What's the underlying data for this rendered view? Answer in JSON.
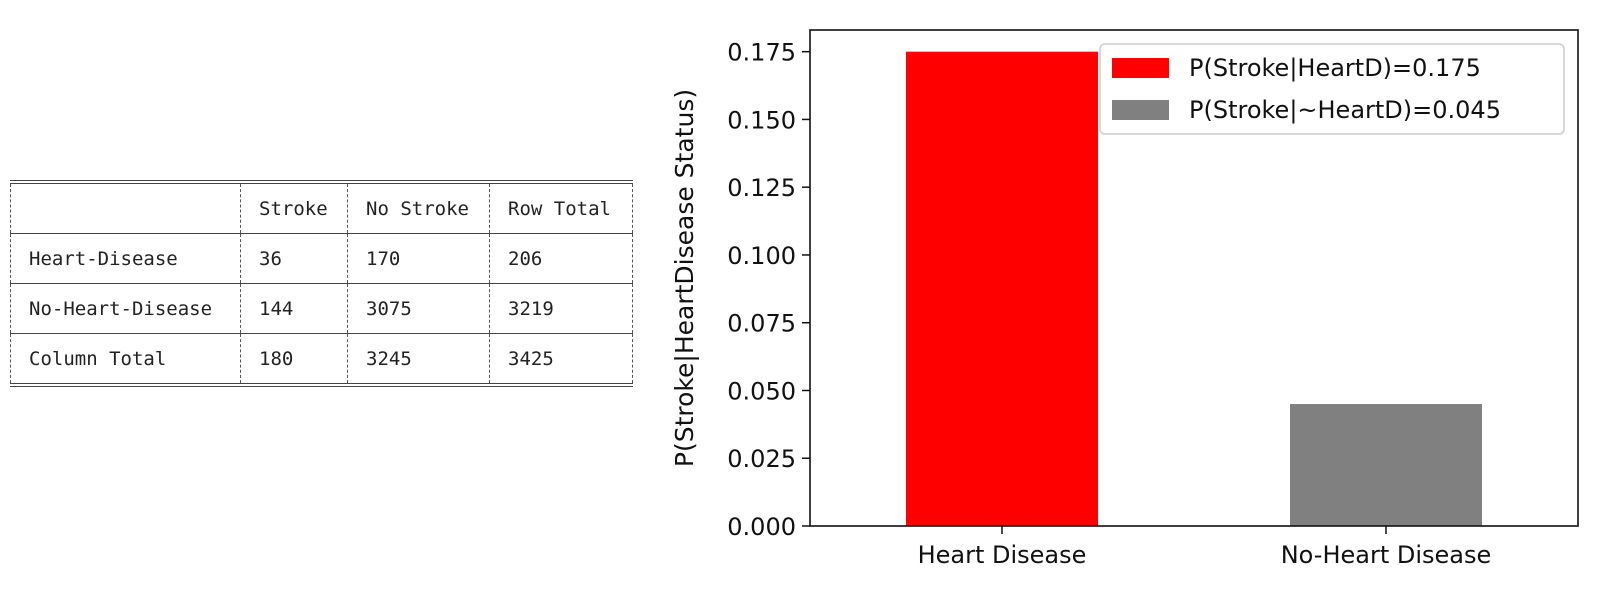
{
  "table": {
    "header": [
      "",
      "Stroke",
      "No Stroke",
      "Row Total"
    ],
    "rows": [
      [
        "Heart-Disease",
        "36",
        "170",
        "206"
      ],
      [
        "No-Heart-Disease",
        "144",
        "3075",
        "3219"
      ],
      [
        "Column Total",
        "180",
        "3245",
        "3425"
      ]
    ]
  },
  "chart_data": {
    "type": "bar",
    "categories": [
      "Heart Disease",
      "No-Heart Disease"
    ],
    "values": [
      0.175,
      0.045
    ],
    "colors": [
      "#ff0000",
      "#808080"
    ],
    "legend": [
      "P(Stroke|HeartD)=0.175",
      "P(Stroke|~HeartD)=0.045"
    ],
    "legend_position": "top-right",
    "xlabel": "",
    "ylabel": "P(Stroke|HeartDisease Status)",
    "ylim": [
      0,
      0.183
    ],
    "yticks": [
      "0.000",
      "0.025",
      "0.050",
      "0.075",
      "0.100",
      "0.125",
      "0.150",
      "0.175"
    ],
    "grid": false
  }
}
